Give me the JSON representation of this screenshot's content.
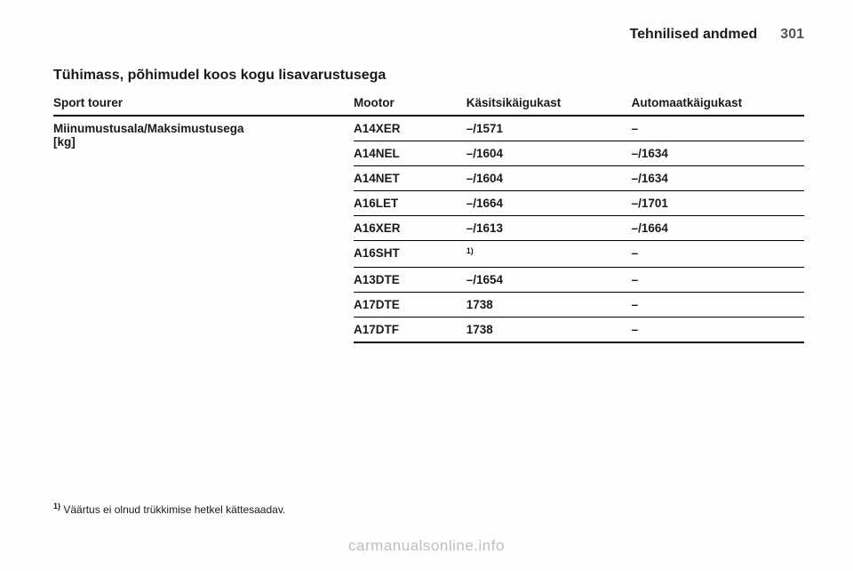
{
  "header": {
    "title": "Tehnilised andmed",
    "page": "301"
  },
  "section_title": "Tühimass, põhimudel koos kogu lisavarustusega",
  "table": {
    "columns": [
      "Sport tourer",
      "Mootor",
      "Käsitsikäigukast",
      "Automaatkäigukast"
    ],
    "col_widths": [
      "40%",
      "15%",
      "22%",
      "23%"
    ],
    "rowlabel_line1": "Miinumustusala/Maksimustusega",
    "rowlabel_line2": "[kg]",
    "rows": [
      {
        "engine": "A14XER",
        "manual": "–/1571",
        "auto": "–"
      },
      {
        "engine": "A14NEL",
        "manual": "–/1604",
        "auto": "–/1634"
      },
      {
        "engine": "A14NET",
        "manual": "–/1604",
        "auto": "–/1634"
      },
      {
        "engine": "A16LET",
        "manual": "–/1664",
        "auto": "–/1701"
      },
      {
        "engine": "A16XER",
        "manual": "–/1613",
        "auto": "–/1664"
      },
      {
        "engine": "A16SHT",
        "manual": "",
        "auto": "–",
        "manual_sup": "1)"
      },
      {
        "engine": "A13DTE",
        "manual": "–/1654",
        "auto": "–"
      },
      {
        "engine": "A17DTE",
        "manual": "1738",
        "auto": "–"
      },
      {
        "engine": "A17DTF",
        "manual": "1738",
        "auto": "–"
      }
    ]
  },
  "footnote": {
    "marker": "1)",
    "text": "Väärtus ei olnud trükkimise hetkel kättesaadav."
  },
  "watermark": "carmanualsonline.info",
  "colors": {
    "text": "#1a1a1a",
    "page_num": "#555555",
    "border": "#000000",
    "watermark": "#bfbfbf",
    "background": "#fefefe"
  }
}
